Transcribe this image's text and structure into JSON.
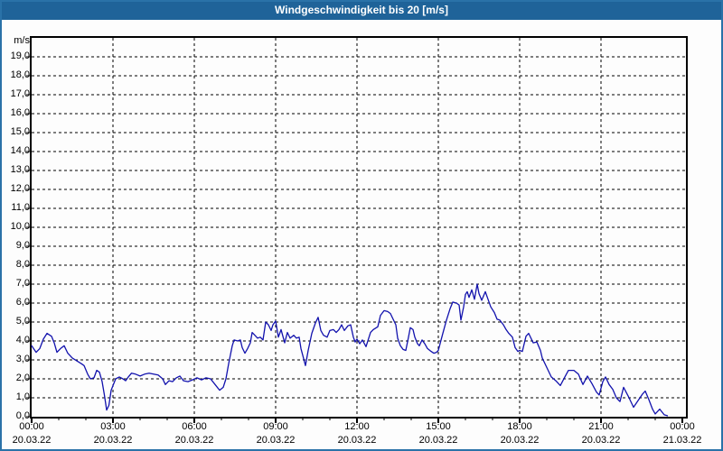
{
  "header": {
    "title": "Windgeschwindigkeit bis 20 [m/s]"
  },
  "colors": {
    "titlebar_bg": "#1f6399",
    "frame_border": "#2a72a8",
    "background": "#fdfdfd",
    "grid": "#000000",
    "axis": "#000000",
    "line": "#1212ad",
    "title_text": "#ffffff",
    "label_text": "#000000"
  },
  "chart_data": {
    "type": "line",
    "title": "Windgeschwindigkeit bis 20 [m/s]",
    "ylabel": "m/s",
    "ylim": [
      0,
      20
    ],
    "y_tick_step": 1,
    "grid": "dashed",
    "legend": "none",
    "y_tick_labels": [
      "19,0",
      "18,0",
      "17,0",
      "16,0",
      "15,0",
      "14,0",
      "13,0",
      "12,0",
      "11,0",
      "10,0",
      "9,0",
      "8,0",
      "7,0",
      "6,0",
      "5,0",
      "4,0",
      "3,0",
      "2,0",
      "1,0",
      "0,0"
    ],
    "x_ticks": [
      {
        "hour": 0,
        "label": "00:00",
        "date": "20.03.22"
      },
      {
        "hour": 3,
        "label": "03:00",
        "date": "20.03.22"
      },
      {
        "hour": 6,
        "label": "06:00",
        "date": "20.03.22"
      },
      {
        "hour": 9,
        "label": "09:00",
        "date": "20.03.22"
      },
      {
        "hour": 12,
        "label": "12:00",
        "date": "20.03.22"
      },
      {
        "hour": 15,
        "label": "15:00",
        "date": "20.03.22"
      },
      {
        "hour": 18,
        "label": "18:00",
        "date": "20.03.22"
      },
      {
        "hour": 21,
        "label": "21:00",
        "date": "20.03.22"
      },
      {
        "hour": 24,
        "label": "00:00",
        "date": "21.03.22"
      }
    ],
    "x_minor_tick_every_hours": 1,
    "series": [
      {
        "name": "Windgeschwindigkeit",
        "unit": "m/s",
        "color": "#1212ad",
        "points_minutes_value": [
          [
            0,
            3.75
          ],
          [
            10,
            3.4
          ],
          [
            18,
            3.6
          ],
          [
            26,
            4.1
          ],
          [
            34,
            4.4
          ],
          [
            44,
            4.25
          ],
          [
            50,
            3.9
          ],
          [
            56,
            3.4
          ],
          [
            64,
            3.6
          ],
          [
            72,
            3.75
          ],
          [
            80,
            3.35
          ],
          [
            90,
            3.1
          ],
          [
            100,
            2.95
          ],
          [
            110,
            2.8
          ],
          [
            116,
            2.7
          ],
          [
            124,
            2.25
          ],
          [
            130,
            2.0
          ],
          [
            138,
            2.05
          ],
          [
            144,
            2.45
          ],
          [
            150,
            2.35
          ],
          [
            156,
            1.85
          ],
          [
            161,
            1.15
          ],
          [
            166,
            0.35
          ],
          [
            171,
            0.6
          ],
          [
            176,
            1.4
          ],
          [
            181,
            1.7
          ],
          [
            186,
            2.0
          ],
          [
            194,
            2.1
          ],
          [
            202,
            2.0
          ],
          [
            208,
            1.9
          ],
          [
            214,
            2.1
          ],
          [
            221,
            2.3
          ],
          [
            230,
            2.25
          ],
          [
            240,
            2.15
          ],
          [
            250,
            2.25
          ],
          [
            260,
            2.3
          ],
          [
            270,
            2.25
          ],
          [
            280,
            2.2
          ],
          [
            290,
            2.0
          ],
          [
            296,
            1.7
          ],
          [
            304,
            1.9
          ],
          [
            312,
            1.85
          ],
          [
            320,
            2.05
          ],
          [
            328,
            2.15
          ],
          [
            336,
            1.9
          ],
          [
            346,
            1.85
          ],
          [
            356,
            1.95
          ],
          [
            366,
            2.05
          ],
          [
            376,
            1.95
          ],
          [
            386,
            2.05
          ],
          [
            396,
            2.0
          ],
          [
            406,
            1.7
          ],
          [
            416,
            1.4
          ],
          [
            424,
            1.55
          ],
          [
            430,
            2.0
          ],
          [
            436,
            2.8
          ],
          [
            444,
            3.75
          ],
          [
            448,
            4.05
          ],
          [
            456,
            4.0
          ],
          [
            462,
            4.05
          ],
          [
            466,
            3.65
          ],
          [
            472,
            3.35
          ],
          [
            478,
            3.6
          ],
          [
            484,
            3.9
          ],
          [
            488,
            4.45
          ],
          [
            494,
            4.3
          ],
          [
            500,
            4.15
          ],
          [
            506,
            4.2
          ],
          [
            512,
            4.05
          ],
          [
            518,
            5.0
          ],
          [
            524,
            4.85
          ],
          [
            530,
            4.55
          ],
          [
            534,
            4.85
          ],
          [
            540,
            5.05
          ],
          [
            546,
            4.2
          ],
          [
            552,
            4.6
          ],
          [
            560,
            3.9
          ],
          [
            566,
            4.45
          ],
          [
            572,
            4.15
          ],
          [
            580,
            4.3
          ],
          [
            586,
            4.15
          ],
          [
            592,
            4.2
          ],
          [
            596,
            3.6
          ],
          [
            606,
            2.7
          ],
          [
            612,
            3.5
          ],
          [
            620,
            4.4
          ],
          [
            628,
            4.95
          ],
          [
            634,
            5.25
          ],
          [
            640,
            4.55
          ],
          [
            646,
            4.3
          ],
          [
            654,
            4.2
          ],
          [
            660,
            4.55
          ],
          [
            668,
            4.6
          ],
          [
            674,
            4.45
          ],
          [
            680,
            4.6
          ],
          [
            686,
            4.85
          ],
          [
            692,
            4.55
          ],
          [
            700,
            4.8
          ],
          [
            706,
            4.85
          ],
          [
            712,
            4.2
          ],
          [
            716,
            3.95
          ],
          [
            720,
            4.1
          ],
          [
            726,
            3.85
          ],
          [
            732,
            4.05
          ],
          [
            740,
            3.7
          ],
          [
            750,
            4.45
          ],
          [
            756,
            4.6
          ],
          [
            766,
            4.75
          ],
          [
            772,
            5.35
          ],
          [
            780,
            5.6
          ],
          [
            788,
            5.55
          ],
          [
            794,
            5.45
          ],
          [
            800,
            5.15
          ],
          [
            806,
            4.85
          ],
          [
            810,
            4.15
          ],
          [
            816,
            3.75
          ],
          [
            822,
            3.55
          ],
          [
            828,
            3.5
          ],
          [
            834,
            4.2
          ],
          [
            838,
            4.7
          ],
          [
            844,
            4.6
          ],
          [
            848,
            4.2
          ],
          [
            854,
            3.85
          ],
          [
            858,
            3.75
          ],
          [
            864,
            4.05
          ],
          [
            870,
            3.85
          ],
          [
            876,
            3.6
          ],
          [
            884,
            3.45
          ],
          [
            890,
            3.35
          ],
          [
            896,
            3.4
          ],
          [
            900,
            3.5
          ],
          [
            910,
            4.4
          ],
          [
            918,
            5.1
          ],
          [
            926,
            5.7
          ],
          [
            932,
            6.05
          ],
          [
            940,
            6.0
          ],
          [
            946,
            5.9
          ],
          [
            950,
            5.1
          ],
          [
            956,
            5.8
          ],
          [
            960,
            6.45
          ],
          [
            964,
            6.6
          ],
          [
            968,
            6.3
          ],
          [
            974,
            6.7
          ],
          [
            980,
            6.2
          ],
          [
            986,
            7.0
          ],
          [
            990,
            6.5
          ],
          [
            996,
            6.15
          ],
          [
            1004,
            6.6
          ],
          [
            1010,
            6.2
          ],
          [
            1016,
            5.8
          ],
          [
            1024,
            5.5
          ],
          [
            1030,
            5.15
          ],
          [
            1036,
            5.1
          ],
          [
            1044,
            4.85
          ],
          [
            1050,
            4.6
          ],
          [
            1056,
            4.4
          ],
          [
            1064,
            4.2
          ],
          [
            1070,
            3.65
          ],
          [
            1076,
            3.45
          ],
          [
            1080,
            3.5
          ],
          [
            1086,
            3.45
          ],
          [
            1094,
            4.25
          ],
          [
            1100,
            4.4
          ],
          [
            1110,
            3.9
          ],
          [
            1118,
            3.95
          ],
          [
            1126,
            3.5
          ],
          [
            1130,
            3.1
          ],
          [
            1140,
            2.6
          ],
          [
            1150,
            2.1
          ],
          [
            1160,
            1.9
          ],
          [
            1170,
            1.65
          ],
          [
            1180,
            2.1
          ],
          [
            1188,
            2.45
          ],
          [
            1200,
            2.45
          ],
          [
            1210,
            2.25
          ],
          [
            1220,
            1.7
          ],
          [
            1230,
            2.15
          ],
          [
            1240,
            1.75
          ],
          [
            1250,
            1.3
          ],
          [
            1256,
            1.15
          ],
          [
            1264,
            1.85
          ],
          [
            1270,
            2.1
          ],
          [
            1278,
            1.7
          ],
          [
            1286,
            1.45
          ],
          [
            1294,
            1.0
          ],
          [
            1302,
            0.8
          ],
          [
            1310,
            1.55
          ],
          [
            1320,
            1.1
          ],
          [
            1332,
            0.5
          ],
          [
            1342,
            0.85
          ],
          [
            1352,
            1.2
          ],
          [
            1358,
            1.35
          ],
          [
            1366,
            0.9
          ],
          [
            1374,
            0.4
          ],
          [
            1380,
            0.15
          ],
          [
            1390,
            0.4
          ],
          [
            1400,
            0.1
          ],
          [
            1407,
            0.05
          ]
        ]
      }
    ]
  }
}
